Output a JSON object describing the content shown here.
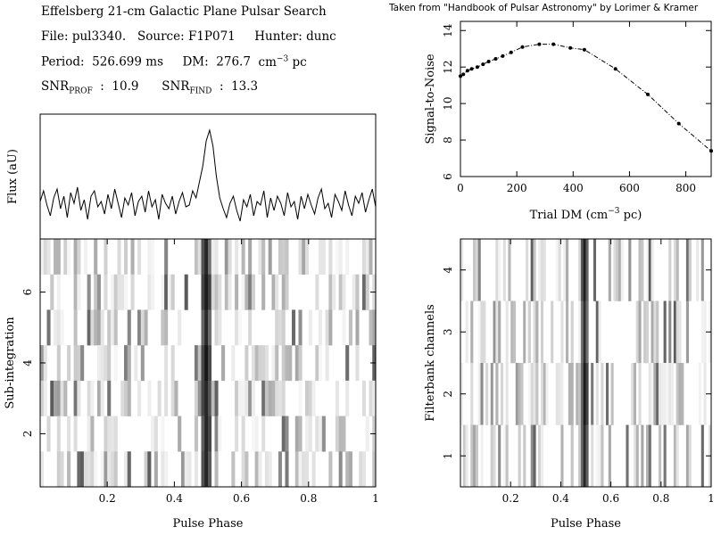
{
  "header": {
    "title": "Effelsberg 21-cm Galactic Plane Pulsar Search",
    "file_label": "File:",
    "file": "pul3340.",
    "source_label": "Source:",
    "source": "F1P071",
    "hunter_label": "Hunter:",
    "hunter": "dunc",
    "period_label": "Period:",
    "period": "526.699 ms",
    "dm_label": "DM:",
    "dm_value": "276.7",
    "dm_unit_pre": "cm",
    "dm_unit_exp": "−3",
    "dm_unit_post": "pc",
    "snr_prof_label": "SNR",
    "snr_prof_sub": "PROF",
    "snr_prof": "10.9",
    "snr_find_label": "SNR",
    "snr_find_sub": "FIND",
    "snr_find": "13.3"
  },
  "credit": "Taken from \"Handbook of Pulsar Astronomy\" by Lorimer & Kramer",
  "chart_data": [
    {
      "type": "line",
      "panel": "profile",
      "ylabel": "Flux (aU)",
      "x_range": [
        0,
        1
      ],
      "y_range": [
        -1.5,
        5.5
      ],
      "values": [
        0.6,
        1.2,
        0.4,
        -0.2,
        0.8,
        1.3,
        0.2,
        0.9,
        -0.3,
        1.1,
        0.5,
        1.4,
        0.1,
        0.7,
        -0.4,
        0.9,
        1.2,
        0.3,
        0.6,
        -0.1,
        1.0,
        0.2,
        1.3,
        0.5,
        -0.3,
        0.8,
        0.4,
        1.1,
        -0.2,
        0.6,
        0.9,
        0.0,
        1.2,
        0.3,
        0.7,
        -0.4,
        1.0,
        0.5,
        0.2,
        0.9,
        -0.1,
        0.6,
        1.1,
        0.3,
        0.4,
        1.2,
        0.8,
        1.7,
        2.6,
        4.0,
        4.6,
        3.7,
        2.0,
        0.8,
        0.2,
        -0.3,
        0.5,
        0.9,
        0.1,
        -0.5,
        0.7,
        0.3,
        1.0,
        -0.2,
        0.6,
        0.4,
        1.2,
        -0.3,
        0.8,
        0.1,
        0.9,
        0.5,
        -0.2,
        1.1,
        0.3,
        0.6,
        -0.4,
        0.9,
        0.2,
        1.0,
        0.4,
        -0.1,
        0.8,
        1.3,
        0.2,
        0.5,
        -0.3,
        1.0,
        0.6,
        0.1,
        1.2,
        0.4,
        -0.2,
        0.9,
        0.5,
        1.1,
        0.0,
        0.7,
        1.3,
        0.3
      ]
    },
    {
      "type": "heatmap",
      "panel": "subintegrations",
      "xlabel": "Pulse Phase",
      "ylabel": "Sub-integration",
      "x_range": [
        0,
        1
      ],
      "y_range": [
        0.5,
        7.5
      ],
      "x_ticks": [
        "0.2",
        "0.4",
        "0.6",
        "0.8",
        "1"
      ],
      "y_ticks": [
        "2",
        "4",
        "6"
      ],
      "rows": 7,
      "pulse_phase": 0.5
    },
    {
      "type": "line",
      "panel": "dm_curve",
      "xlabel_pre": "Trial DM (cm",
      "xlabel_exp": "−3",
      "xlabel_post": " pc)",
      "ylabel": "Signal-to-Noise",
      "x_range": [
        0,
        890
      ],
      "y_range": [
        6,
        14.5
      ],
      "x_ticks": [
        "0",
        "200",
        "400",
        "600",
        "800"
      ],
      "y_ticks": [
        "6",
        "8",
        "10",
        "12",
        "14"
      ],
      "x": [
        0,
        10,
        25,
        40,
        60,
        80,
        100,
        125,
        150,
        180,
        220,
        280,
        330,
        390,
        440,
        550,
        665,
        775,
        890
      ],
      "y": [
        11.5,
        11.6,
        11.8,
        11.9,
        12.0,
        12.15,
        12.3,
        12.45,
        12.6,
        12.8,
        13.1,
        13.25,
        13.25,
        13.05,
        12.95,
        11.9,
        10.5,
        8.9,
        7.4
      ]
    },
    {
      "type": "heatmap",
      "panel": "filterbank",
      "xlabel": "Pulse Phase",
      "ylabel": "Filterbank channels",
      "x_range": [
        0,
        1
      ],
      "y_range": [
        0.5,
        4.5
      ],
      "x_ticks": [
        "0.2",
        "0.4",
        "0.6",
        "0.8",
        "1"
      ],
      "y_ticks": [
        "1",
        "2",
        "3",
        "4"
      ],
      "rows": 4,
      "pulse_phase": 0.495
    }
  ]
}
